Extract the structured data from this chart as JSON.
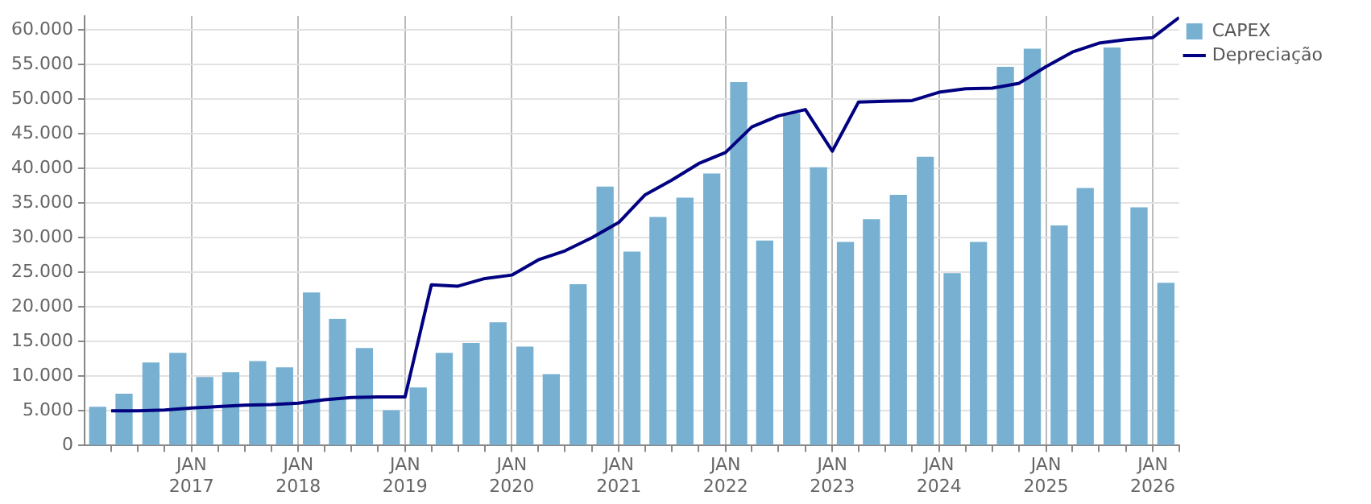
{
  "chart_data": {
    "type": "bar",
    "series": [
      {
        "name": "CAPEX",
        "color": "#77b0d1",
        "x": [
          "2016-02-15",
          "2016-05-15",
          "2016-08-15",
          "2016-11-15",
          "2017-02-15",
          "2017-05-15",
          "2017-08-15",
          "2017-11-15",
          "2018-02-15",
          "2018-05-15",
          "2018-08-15",
          "2018-11-15",
          "2019-02-15",
          "2019-05-15",
          "2019-08-15",
          "2019-11-15",
          "2020-02-15",
          "2020-05-15",
          "2020-08-15",
          "2020-11-15",
          "2021-02-15",
          "2021-05-15",
          "2021-08-15",
          "2021-11-15",
          "2022-02-15",
          "2022-05-15",
          "2022-08-15",
          "2022-11-15",
          "2023-02-15",
          "2023-05-15",
          "2023-08-15",
          "2023-11-15",
          "2024-02-15",
          "2024-05-15",
          "2024-08-15",
          "2024-11-15",
          "2025-02-15",
          "2025-05-15",
          "2025-08-15",
          "2025-11-15",
          "2026-02-15"
        ],
        "values": [
          5500,
          7400,
          11900,
          13300,
          9800,
          10500,
          12100,
          11200,
          22000,
          18200,
          14000,
          5000,
          8300,
          13300,
          14700,
          17700,
          14200,
          10200,
          23200,
          37300,
          27900,
          32900,
          35700,
          39200,
          52400,
          29500,
          47900,
          40100,
          29300,
          32600,
          36100,
          41600,
          24800,
          29300,
          54600,
          57200,
          31700,
          37100,
          57400,
          34300,
          23400
        ]
      },
      {
        "name": "Depreciação",
        "type": "line",
        "color": "#000080",
        "x": [
          "2016-04",
          "2016-07",
          "2016-10",
          "2017-01",
          "2017-04",
          "2017-07",
          "2017-10",
          "2018-01",
          "2018-04",
          "2018-07",
          "2018-10",
          "2019-01",
          "2019-04",
          "2019-07",
          "2019-10",
          "2020-01",
          "2020-04",
          "2020-07",
          "2020-10",
          "2021-01",
          "2021-04",
          "2021-07",
          "2021-10",
          "2022-01",
          "2022-04",
          "2022-07",
          "2022-10",
          "2023-01",
          "2023-04",
          "2023-07",
          "2023-10",
          "2024-01",
          "2024-04",
          "2024-07",
          "2024-10",
          "2025-01",
          "2025-04",
          "2025-07",
          "2025-10",
          "2026-01",
          "2026-04"
        ],
        "values": [
          5000,
          5000,
          5100,
          5400,
          5600,
          5800,
          5900,
          6100,
          6600,
          6900,
          7000,
          7000,
          23200,
          23000,
          24100,
          24600,
          26800,
          28100,
          30000,
          32200,
          36200,
          38300,
          40700,
          42300,
          46000,
          47600,
          48500,
          42500,
          49600,
          49700,
          49800,
          51000,
          51500,
          51600,
          52300,
          54700,
          56800,
          58100,
          58600,
          58900,
          61800
        ]
      }
    ],
    "xlim": [
      "2016-01",
      "2026-04"
    ],
    "xticks": [
      {
        "value": "2016-04",
        "label": null
      },
      {
        "value": "2016-07",
        "label": null
      },
      {
        "value": "2016-10",
        "label": null
      },
      {
        "value": "2017-01",
        "label": "JAN 2017"
      },
      {
        "value": "2017-04",
        "label": null
      },
      {
        "value": "2017-07",
        "label": null
      },
      {
        "value": "2017-10",
        "label": null
      },
      {
        "value": "2018-01",
        "label": "JAN 2018"
      },
      {
        "value": "2018-04",
        "label": null
      },
      {
        "value": "2018-07",
        "label": null
      },
      {
        "value": "2018-10",
        "label": null
      },
      {
        "value": "2019-01",
        "label": "JAN 2019"
      },
      {
        "value": "2019-04",
        "label": null
      },
      {
        "value": "2019-07",
        "label": null
      },
      {
        "value": "2019-10",
        "label": null
      },
      {
        "value": "2020-01",
        "label": "JAN 2020"
      },
      {
        "value": "2020-04",
        "label": null
      },
      {
        "value": "2020-07",
        "label": null
      },
      {
        "value": "2020-10",
        "label": null
      },
      {
        "value": "2021-01",
        "label": "JAN 2021"
      },
      {
        "value": "2021-04",
        "label": null
      },
      {
        "value": "2021-07",
        "label": null
      },
      {
        "value": "2021-10",
        "label": null
      },
      {
        "value": "2022-01",
        "label": "JAN 2022"
      },
      {
        "value": "2022-04",
        "label": null
      },
      {
        "value": "2022-07",
        "label": null
      },
      {
        "value": "2022-10",
        "label": null
      },
      {
        "value": "2023-01",
        "label": "JAN 2023"
      },
      {
        "value": "2023-04",
        "label": null
      },
      {
        "value": "2023-07",
        "label": null
      },
      {
        "value": "2023-10",
        "label": null
      },
      {
        "value": "2024-01",
        "label": "JAN 2024"
      },
      {
        "value": "2024-04",
        "label": null
      },
      {
        "value": "2024-07",
        "label": null
      },
      {
        "value": "2024-10",
        "label": null
      },
      {
        "value": "2025-01",
        "label": "JAN 2025"
      },
      {
        "value": "2025-04",
        "label": null
      },
      {
        "value": "2025-07",
        "label": null
      },
      {
        "value": "2025-10",
        "label": null
      },
      {
        "value": "2026-01",
        "label": "JAN 2026"
      },
      {
        "value": "2026-04",
        "label": null
      }
    ],
    "ylim": [
      0,
      62000
    ],
    "yticks": [
      {
        "value": 0,
        "label": "0"
      },
      {
        "value": 5000,
        "label": "5.000"
      },
      {
        "value": 10000,
        "label": "10.000"
      },
      {
        "value": 15000,
        "label": "15.000"
      },
      {
        "value": 20000,
        "label": "20.000"
      },
      {
        "value": 25000,
        "label": "25.000"
      },
      {
        "value": 30000,
        "label": "30.000"
      },
      {
        "value": 35000,
        "label": "35.000"
      },
      {
        "value": 40000,
        "label": "40.000"
      },
      {
        "value": 45000,
        "label": "45.000"
      },
      {
        "value": 50000,
        "label": "50.000"
      },
      {
        "value": 55000,
        "label": "55.000"
      },
      {
        "value": 60000,
        "label": "60.000"
      }
    ],
    "grid": true,
    "legend": "top right",
    "marker": "none"
  }
}
